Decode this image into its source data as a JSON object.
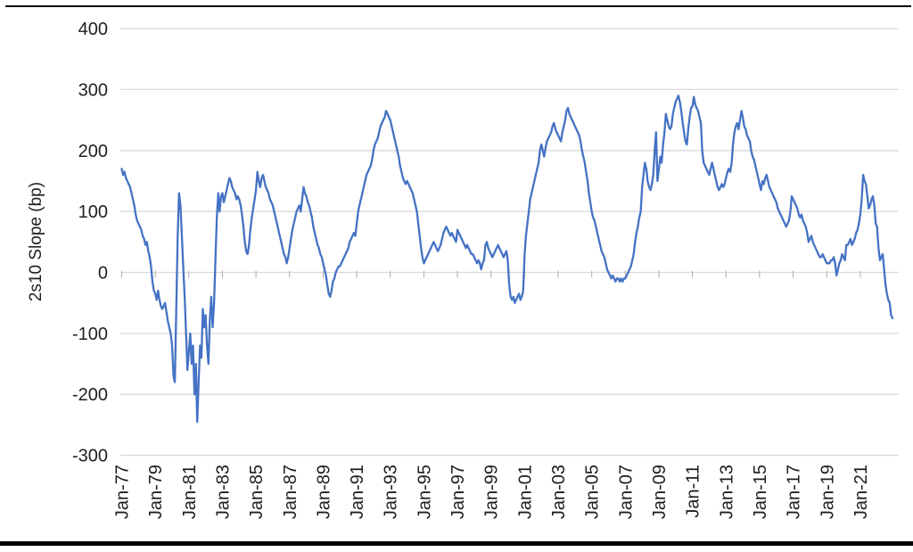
{
  "chart_data": {
    "type": "line",
    "title": "",
    "xlabel": "",
    "ylabel": "2s10 Slope (bp)",
    "ylim": [
      -300,
      400
    ],
    "grid": true,
    "legend": false,
    "y_ticks": [
      400,
      300,
      200,
      100,
      0,
      -100,
      -200,
      -300
    ],
    "x_tick_labels": [
      "Jan-77",
      "Jan-79",
      "Jan-81",
      "Jan-83",
      "Jan-85",
      "Jan-87",
      "Jan-89",
      "Jan-91",
      "Jan-93",
      "Jan-95",
      "Jan-97",
      "Jan-99",
      "Jan-01",
      "Jan-03",
      "Jan-05",
      "Jan-07",
      "Jan-09",
      "Jan-11",
      "Jan-13",
      "Jan-15",
      "Jan-17",
      "Jan-19",
      "Jan-21"
    ],
    "x_tick_interval_months": 24,
    "colors": {
      "line": "#4472C4",
      "gridline": "#D9D9D9",
      "axis_tick": "#ABABAB",
      "text": "#1f1f1f"
    },
    "series": [
      {
        "name": "2s10 Slope (bp)",
        "color": "#4472C4",
        "frequency": "monthly",
        "start": "Jan-1977",
        "end": "Dec-2022",
        "values": [
          170,
          160,
          165,
          155,
          150,
          145,
          140,
          130,
          120,
          110,
          95,
          85,
          80,
          75,
          70,
          60,
          55,
          45,
          50,
          35,
          25,
          10,
          -15,
          -30,
          -35,
          -45,
          -30,
          -45,
          -55,
          -60,
          -55,
          -50,
          -65,
          -80,
          -90,
          -100,
          -120,
          -170,
          -180,
          -60,
          60,
          130,
          110,
          60,
          10,
          -40,
          -100,
          -160,
          -130,
          -100,
          -150,
          -120,
          -200,
          -150,
          -245,
          -180,
          -120,
          -140,
          -60,
          -90,
          -70,
          -120,
          -150,
          -80,
          -40,
          -90,
          -50,
          20,
          90,
          130,
          100,
          125,
          130,
          115,
          125,
          135,
          145,
          155,
          150,
          140,
          135,
          130,
          120,
          125,
          120,
          110,
          95,
          75,
          50,
          35,
          30,
          45,
          70,
          90,
          105,
          120,
          135,
          165,
          150,
          140,
          155,
          160,
          150,
          140,
          135,
          130,
          120,
          115,
          110,
          100,
          90,
          80,
          70,
          60,
          50,
          40,
          30,
          25,
          15,
          25,
          40,
          55,
          70,
          80,
          90,
          100,
          105,
          110,
          100,
          120,
          140,
          130,
          125,
          115,
          110,
          100,
          90,
          75,
          65,
          55,
          45,
          40,
          30,
          25,
          15,
          5,
          -5,
          -20,
          -35,
          -40,
          -30,
          -15,
          -10,
          0,
          5,
          10,
          10,
          15,
          20,
          25,
          30,
          35,
          40,
          50,
          55,
          60,
          65,
          60,
          80,
          100,
          110,
          120,
          130,
          140,
          150,
          160,
          165,
          170,
          175,
          185,
          200,
          210,
          215,
          220,
          230,
          240,
          245,
          250,
          255,
          265,
          260,
          255,
          250,
          240,
          230,
          220,
          210,
          200,
          190,
          175,
          165,
          155,
          150,
          145,
          150,
          145,
          140,
          135,
          130,
          120,
          110,
          100,
          80,
          60,
          40,
          25,
          15,
          20,
          25,
          30,
          35,
          40,
          45,
          50,
          45,
          40,
          35,
          40,
          45,
          55,
          65,
          70,
          75,
          70,
          65,
          60,
          65,
          60,
          55,
          50,
          70,
          65,
          60,
          55,
          50,
          45,
          40,
          45,
          40,
          35,
          30,
          30,
          25,
          20,
          15,
          20,
          15,
          5,
          15,
          20,
          45,
          50,
          40,
          35,
          30,
          25,
          30,
          35,
          40,
          45,
          40,
          35,
          30,
          25,
          30,
          35,
          20,
          -20,
          -40,
          -45,
          -40,
          -50,
          -45,
          -40,
          -35,
          -45,
          -40,
          -30,
          30,
          60,
          80,
          100,
          120,
          130,
          140,
          150,
          160,
          170,
          180,
          200,
          210,
          200,
          190,
          205,
          215,
          220,
          225,
          230,
          240,
          245,
          235,
          230,
          225,
          220,
          215,
          230,
          240,
          250,
          265,
          270,
          260,
          255,
          250,
          245,
          240,
          235,
          230,
          225,
          215,
          200,
          190,
          180,
          165,
          150,
          130,
          115,
          100,
          90,
          85,
          75,
          65,
          55,
          45,
          35,
          30,
          25,
          15,
          5,
          0,
          -5,
          -10,
          -5,
          -10,
          -15,
          -10,
          -10,
          -15,
          -10,
          -15,
          -10,
          -10,
          -5,
          0,
          5,
          10,
          20,
          30,
          50,
          65,
          75,
          90,
          100,
          140,
          160,
          180,
          170,
          150,
          140,
          135,
          145,
          160,
          200,
          230,
          150,
          170,
          190,
          180,
          210,
          230,
          260,
          250,
          240,
          235,
          240,
          260,
          270,
          280,
          285,
          290,
          280,
          265,
          245,
          230,
          215,
          210,
          235,
          255,
          270,
          272,
          288,
          275,
          270,
          265,
          255,
          245,
          200,
          180,
          175,
          170,
          165,
          160,
          170,
          180,
          170,
          160,
          150,
          140,
          135,
          140,
          145,
          140,
          145,
          155,
          165,
          170,
          165,
          180,
          210,
          230,
          240,
          245,
          235,
          250,
          265,
          255,
          240,
          235,
          225,
          220,
          215,
          200,
          190,
          185,
          175,
          165,
          155,
          145,
          135,
          150,
          145,
          155,
          160,
          150,
          140,
          135,
          130,
          125,
          120,
          115,
          105,
          100,
          95,
          90,
          85,
          80,
          75,
          80,
          85,
          100,
          125,
          120,
          115,
          110,
          105,
          95,
          90,
          95,
          85,
          80,
          75,
          65,
          50,
          55,
          60,
          50,
          45,
          40,
          35,
          30,
          25,
          25,
          30,
          25,
          20,
          15,
          15,
          15,
          20,
          20,
          25,
          15,
          -5,
          5,
          15,
          20,
          30,
          25,
          20,
          45,
          45,
          50,
          55,
          45,
          50,
          55,
          65,
          70,
          80,
          95,
          120,
          160,
          150,
          145,
          125,
          105,
          110,
          120,
          125,
          110,
          80,
          75,
          40,
          20,
          25,
          30,
          5,
          -20,
          -35,
          -45,
          -50,
          -70,
          -75
        ]
      }
    ]
  }
}
